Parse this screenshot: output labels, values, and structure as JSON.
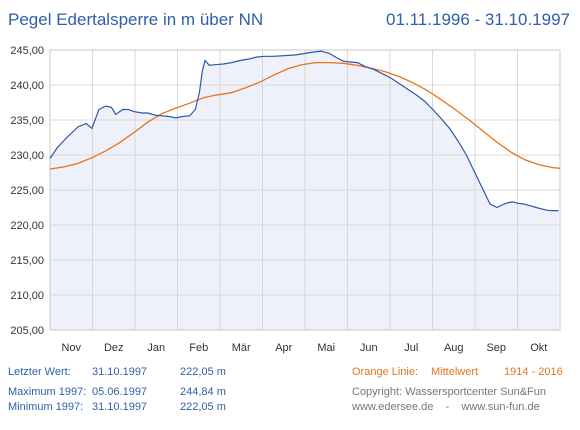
{
  "header": {
    "title": "Pegel Edertalsperre in m über NN",
    "period": "01.11.1996 - 31.10.1997"
  },
  "footer": {
    "last_label": "Letzter Wert:",
    "last_date": "31.10.1997",
    "last_value": "222,05 m",
    "max_label": "Maximum 1997:",
    "max_date": "05.06.1997",
    "max_value": "244,84 m",
    "min_label": "Minimum  1997:",
    "min_date": "31.10.1997",
    "min_value": "222,05 m",
    "orange_label": "Orange Linie:",
    "orange_desc": "Mittelwert",
    "orange_years": "1914 - 2016",
    "copyright": "Copyright: Wassersportcenter Sun&Fun",
    "urls": "www.edersee.de    -    www.sun-fun.de"
  },
  "colors": {
    "accent": "#2f5fa8",
    "actual_line": "#2a5aa6",
    "mean_line": "#e8731a",
    "area_fill": "#eef1f9",
    "grid": "#d8d8d8"
  },
  "chart_data": {
    "type": "line",
    "xlabel": "",
    "ylabel": "",
    "ylim": [
      205,
      245
    ],
    "xlim": [
      0,
      365
    ],
    "y_ticks": [
      "205,00",
      "210,00",
      "215,00",
      "220,00",
      "225,00",
      "230,00",
      "235,00",
      "240,00",
      "245,00"
    ],
    "months": [
      "Nov",
      "Dez",
      "Jan",
      "Feb",
      "Mär",
      "Apr",
      "Mai",
      "Jun",
      "Jul",
      "Aug",
      "Sep",
      "Okt"
    ],
    "grid": true,
    "series": [
      {
        "role": "actual",
        "x": [
          0,
          5,
          12,
          20,
          26,
          30,
          35,
          40,
          44,
          47,
          52,
          56,
          60,
          66,
          70,
          75,
          80,
          85,
          90,
          95,
          100,
          104,
          107,
          109,
          111,
          114,
          118,
          124,
          130,
          136,
          142,
          148,
          154,
          160,
          168,
          176,
          182,
          188,
          194,
          200,
          206,
          210,
          214,
          220,
          226,
          232,
          238,
          244,
          250,
          256,
          262,
          268,
          274,
          280,
          286,
          292,
          298,
          304,
          310,
          315,
          320,
          325,
          328,
          331,
          335,
          339,
          343,
          348,
          352,
          356,
          360,
          364
        ],
        "y": [
          229.5,
          231.0,
          232.5,
          234.0,
          234.5,
          233.8,
          236.5,
          237.0,
          236.8,
          235.8,
          236.5,
          236.5,
          236.2,
          236.0,
          236.0,
          235.7,
          235.6,
          235.5,
          235.3,
          235.5,
          235.6,
          236.5,
          239.0,
          242.0,
          243.5,
          242.8,
          242.9,
          243.0,
          243.2,
          243.5,
          243.7,
          244.0,
          244.1,
          244.1,
          244.2,
          244.3,
          244.5,
          244.7,
          244.84,
          244.5,
          243.8,
          243.4,
          243.3,
          243.2,
          242.6,
          242.2,
          241.6,
          241.0,
          240.2,
          239.4,
          238.6,
          237.7,
          236.5,
          235.2,
          233.8,
          232.0,
          230.0,
          227.5,
          225.0,
          223.0,
          222.5,
          223.0,
          223.2,
          223.3,
          223.1,
          223.0,
          222.8,
          222.5,
          222.3,
          222.1,
          222.05,
          222.05
        ]
      },
      {
        "role": "mean",
        "x": [
          0,
          10,
          20,
          30,
          40,
          50,
          60,
          70,
          80,
          90,
          100,
          110,
          120,
          130,
          140,
          150,
          160,
          170,
          180,
          190,
          200,
          210,
          220,
          230,
          240,
          250,
          260,
          270,
          280,
          290,
          300,
          310,
          320,
          330,
          340,
          350,
          360,
          365
        ],
        "y": [
          228.0,
          228.3,
          228.8,
          229.6,
          230.6,
          231.8,
          233.2,
          234.7,
          235.9,
          236.7,
          237.4,
          238.2,
          238.6,
          238.9,
          239.6,
          240.4,
          241.4,
          242.3,
          242.9,
          243.2,
          243.2,
          243.1,
          242.8,
          242.4,
          241.9,
          241.2,
          240.3,
          239.2,
          237.9,
          236.5,
          235.0,
          233.4,
          231.8,
          230.4,
          229.3,
          228.6,
          228.2,
          228.1
        ]
      }
    ]
  }
}
